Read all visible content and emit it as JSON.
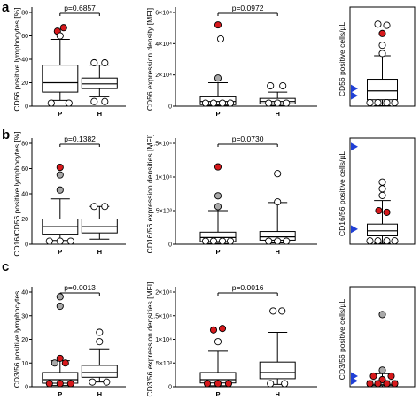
{
  "panel_letters": [
    "a",
    "b",
    "c"
  ],
  "colors": {
    "red": "#d7191c",
    "gray": "#a9a9a9",
    "white": "#ffffff",
    "blue_marker": "#1f3fd6",
    "stroke": "#000000"
  },
  "chart_data": [
    {
      "type": "box",
      "panel": "a",
      "ylabel": "CD56 positive lymphocytes [%]",
      "ylim": [
        0,
        80
      ],
      "yticks": [
        0,
        20,
        40,
        60,
        80
      ],
      "categories": [
        "P",
        "H"
      ],
      "pvalue": "p=0.6857",
      "boxes": [
        {
          "q1": 12,
          "median": 20,
          "q3": 35,
          "whisker_low": 5,
          "whisker_high": 57
        },
        {
          "q1": 15,
          "median": 19,
          "q3": 24,
          "whisker_low": 8,
          "whisker_high": 35
        }
      ],
      "points": [
        {
          "cat": 0,
          "value": 64,
          "color": "red",
          "jitter": -3
        },
        {
          "cat": 0,
          "value": 67,
          "color": "red",
          "jitter": 4
        },
        {
          "cat": 0,
          "value": 60,
          "color": "white",
          "jitter": 0
        },
        {
          "cat": 0,
          "value": 2,
          "color": "white",
          "jitter": -10
        },
        {
          "cat": 0,
          "value": 2,
          "color": "white",
          "jitter": 10
        },
        {
          "cat": 1,
          "value": 37,
          "color": "white",
          "jitter": -6
        },
        {
          "cat": 1,
          "value": 37,
          "color": "white",
          "jitter": 6
        },
        {
          "cat": 1,
          "value": 4,
          "color": "white",
          "jitter": -6
        },
        {
          "cat": 1,
          "value": 4,
          "color": "white",
          "jitter": 6
        }
      ]
    },
    {
      "type": "box",
      "panel": "a",
      "ylabel": "CD56 expression density [MFI]",
      "ylim": [
        0,
        60000
      ],
      "yticks": [
        0,
        20000,
        40000,
        60000
      ],
      "ytick_labels": [
        "0",
        "2×10⁴",
        "4×10⁴",
        "6×10⁴"
      ],
      "categories": [
        "P",
        "H"
      ],
      "pvalue": "p=0.0972",
      "boxes": [
        {
          "q1": 1000,
          "median": 3000,
          "q3": 6000,
          "whisker_low": 300,
          "whisker_high": 15000
        },
        {
          "q1": 1500,
          "median": 3000,
          "q3": 5000,
          "whisker_low": 500,
          "whisker_high": 9000
        }
      ],
      "points": [
        {
          "cat": 0,
          "value": 52000,
          "color": "red",
          "jitter": 0
        },
        {
          "cat": 0,
          "value": 43000,
          "color": "white",
          "jitter": 3
        },
        {
          "cat": 0,
          "value": 18000,
          "color": "gray",
          "jitter": 0
        },
        {
          "cat": 0,
          "value": 500,
          "color": "white",
          "jitter": -14
        },
        {
          "cat": 0,
          "value": 500,
          "color": "white",
          "jitter": -5
        },
        {
          "cat": 0,
          "value": 500,
          "color": "white",
          "jitter": 5
        },
        {
          "cat": 0,
          "value": 500,
          "color": "white",
          "jitter": 14
        },
        {
          "cat": 1,
          "value": 13000,
          "color": "white",
          "jitter": -8
        },
        {
          "cat": 1,
          "value": 13000,
          "color": "white",
          "jitter": 6
        },
        {
          "cat": 1,
          "value": 500,
          "color": "white",
          "jitter": -10
        },
        {
          "cat": 1,
          "value": 500,
          "color": "white",
          "jitter": 0
        },
        {
          "cat": 1,
          "value": 500,
          "color": "white",
          "jitter": 10
        }
      ]
    },
    {
      "type": "box",
      "panel": "a",
      "ylabel": "CD56 positive cells/µL",
      "ylim": [
        0,
        800
      ],
      "yticks": [],
      "categories": [],
      "pvalue": "",
      "boxes": [
        {
          "q1": 55,
          "median": 130,
          "q3": 230,
          "whisker_low": 5,
          "whisker_high": 430
        }
      ],
      "points": [
        {
          "cat": 0,
          "value": 700,
          "color": "white",
          "jitter": -5
        },
        {
          "cat": 0,
          "value": 690,
          "color": "white",
          "jitter": 5
        },
        {
          "cat": 0,
          "value": 620,
          "color": "red",
          "jitter": 0
        },
        {
          "cat": 0,
          "value": 520,
          "color": "white",
          "jitter": 0
        },
        {
          "cat": 0,
          "value": 450,
          "color": "white",
          "jitter": 0
        },
        {
          "cat": 0,
          "value": 30,
          "color": "white",
          "jitter": -14
        },
        {
          "cat": 0,
          "value": 30,
          "color": "white",
          "jitter": -5
        },
        {
          "cat": 0,
          "value": 30,
          "color": "white",
          "jitter": 5
        },
        {
          "cat": 0,
          "value": 30,
          "color": "white",
          "jitter": 14
        }
      ],
      "markers": [
        90,
        150
      ]
    },
    {
      "type": "box",
      "panel": "b",
      "ylabel": "CD16/CD56 positive lymphocytes [%]",
      "ylim": [
        0,
        80
      ],
      "yticks": [
        0,
        20,
        40,
        60,
        80
      ],
      "categories": [
        "P",
        "H"
      ],
      "pvalue": "p=0.1382",
      "boxes": [
        {
          "q1": 8,
          "median": 14,
          "q3": 20,
          "whisker_low": 3,
          "whisker_high": 36
        },
        {
          "q1": 9,
          "median": 14,
          "q3": 20,
          "whisker_low": 4,
          "whisker_high": 30
        }
      ],
      "points": [
        {
          "cat": 0,
          "value": 61,
          "color": "red",
          "jitter": 0
        },
        {
          "cat": 0,
          "value": 55,
          "color": "gray",
          "jitter": 0
        },
        {
          "cat": 0,
          "value": 43,
          "color": "gray",
          "jitter": 0
        },
        {
          "cat": 0,
          "value": 2,
          "color": "white",
          "jitter": -12
        },
        {
          "cat": 0,
          "value": 2,
          "color": "white",
          "jitter": 0
        },
        {
          "cat": 0,
          "value": 2,
          "color": "white",
          "jitter": 12
        },
        {
          "cat": 1,
          "value": 30,
          "color": "white",
          "jitter": -6
        },
        {
          "cat": 1,
          "value": 30,
          "color": "white",
          "jitter": 6
        }
      ]
    },
    {
      "type": "box",
      "panel": "b",
      "ylabel": "CD16/56 expression densities [MFI]",
      "ylim": [
        0,
        15000
      ],
      "yticks": [
        0,
        5000,
        10000,
        15000
      ],
      "ytick_labels": [
        "0",
        "5×10³",
        "1×10⁴",
        "1.5×10⁴"
      ],
      "categories": [
        "P",
        "H"
      ],
      "pvalue": "p=0.0730",
      "boxes": [
        {
          "q1": 400,
          "median": 1000,
          "q3": 1800,
          "whisker_low": 100,
          "whisker_high": 5000
        },
        {
          "q1": 600,
          "median": 1100,
          "q3": 1900,
          "whisker_low": 200,
          "whisker_high": 6200
        }
      ],
      "points": [
        {
          "cat": 0,
          "value": 11500,
          "color": "red",
          "jitter": 0
        },
        {
          "cat": 0,
          "value": 7200,
          "color": "gray",
          "jitter": 0
        },
        {
          "cat": 0,
          "value": 5600,
          "color": "gray",
          "jitter": 0
        },
        {
          "cat": 0,
          "value": 200,
          "color": "white",
          "jitter": -14
        },
        {
          "cat": 0,
          "value": 200,
          "color": "white",
          "jitter": -5
        },
        {
          "cat": 0,
          "value": 200,
          "color": "white",
          "jitter": 5
        },
        {
          "cat": 0,
          "value": 200,
          "color": "white",
          "jitter": 14
        },
        {
          "cat": 1,
          "value": 10500,
          "color": "white",
          "jitter": 0
        },
        {
          "cat": 1,
          "value": 6300,
          "color": "white",
          "jitter": 0
        },
        {
          "cat": 1,
          "value": 200,
          "color": "white",
          "jitter": -10
        },
        {
          "cat": 1,
          "value": 200,
          "color": "white",
          "jitter": 0
        },
        {
          "cat": 1,
          "value": 200,
          "color": "white",
          "jitter": 10
        }
      ]
    },
    {
      "type": "box",
      "panel": "b",
      "ylabel": "CD16/56 positive cells/µL",
      "ylim": [
        0,
        600
      ],
      "yticks": [],
      "categories": [],
      "pvalue": "",
      "boxes": [
        {
          "q1": 50,
          "median": 80,
          "q3": 120,
          "whisker_low": 5,
          "whisker_high": 260
        }
      ],
      "points": [
        {
          "cat": 0,
          "value": 370,
          "color": "white",
          "jitter": 0
        },
        {
          "cat": 0,
          "value": 330,
          "color": "white",
          "jitter": 0
        },
        {
          "cat": 0,
          "value": 290,
          "color": "white",
          "jitter": 0
        },
        {
          "cat": 0,
          "value": 200,
          "color": "red",
          "jitter": -4
        },
        {
          "cat": 0,
          "value": 190,
          "color": "red",
          "jitter": 5
        },
        {
          "cat": 0,
          "value": 20,
          "color": "white",
          "jitter": -14
        },
        {
          "cat": 0,
          "value": 20,
          "color": "white",
          "jitter": -5
        },
        {
          "cat": 0,
          "value": 20,
          "color": "white",
          "jitter": 5
        },
        {
          "cat": 0,
          "value": 20,
          "color": "white",
          "jitter": 14
        }
      ],
      "markers": [
        90,
        580
      ]
    },
    {
      "type": "box",
      "panel": "c",
      "ylabel": "CD3/56 positive lymphocytes",
      "ylim": [
        0,
        40
      ],
      "yticks": [
        0,
        10,
        20,
        30,
        40
      ],
      "categories": [
        "P",
        "H"
      ],
      "pvalue": "p=0.0013",
      "boxes": [
        {
          "q1": 1.5,
          "median": 3,
          "q3": 6,
          "whisker_low": 0.5,
          "whisker_high": 11
        },
        {
          "q1": 4,
          "median": 6,
          "q3": 9,
          "whisker_low": 2,
          "whisker_high": 16
        }
      ],
      "points": [
        {
          "cat": 0,
          "value": 38,
          "color": "gray",
          "jitter": 0
        },
        {
          "cat": 0,
          "value": 34,
          "color": "gray",
          "jitter": 0
        },
        {
          "cat": 0,
          "value": 12,
          "color": "red",
          "jitter": 0
        },
        {
          "cat": 0,
          "value": 10,
          "color": "gray",
          "jitter": -6
        },
        {
          "cat": 0,
          "value": 10,
          "color": "red",
          "jitter": 6
        },
        {
          "cat": 0,
          "value": 1,
          "color": "red",
          "jitter": -12
        },
        {
          "cat": 0,
          "value": 1,
          "color": "red",
          "jitter": 0
        },
        {
          "cat": 0,
          "value": 1,
          "color": "red",
          "jitter": 12
        },
        {
          "cat": 1,
          "value": 23,
          "color": "white",
          "jitter": 0
        },
        {
          "cat": 1,
          "value": 19,
          "color": "white",
          "jitter": 0
        },
        {
          "cat": 1,
          "value": 2,
          "color": "white",
          "jitter": -8
        },
        {
          "cat": 1,
          "value": 2,
          "color": "white",
          "jitter": 8
        }
      ]
    },
    {
      "type": "box",
      "panel": "c",
      "ylabel": "CD3/56 expression densities [MFI]",
      "ylim": [
        0,
        20000
      ],
      "yticks": [
        0,
        5000,
        10000,
        15000,
        20000
      ],
      "ytick_labels": [
        "0",
        "5×10³",
        "1×10⁴",
        "1.5×10⁴",
        "2×10⁴"
      ],
      "categories": [
        "P",
        "H"
      ],
      "pvalue": "p=0.0016",
      "boxes": [
        {
          "q1": 800,
          "median": 1500,
          "q3": 3000,
          "whisker_low": 200,
          "whisker_high": 7500
        },
        {
          "q1": 1700,
          "median": 3000,
          "q3": 5200,
          "whisker_low": 500,
          "whisker_high": 11500
        }
      ],
      "points": [
        {
          "cat": 0,
          "value": 12000,
          "color": "red",
          "jitter": -5
        },
        {
          "cat": 0,
          "value": 12300,
          "color": "red",
          "jitter": 5
        },
        {
          "cat": 0,
          "value": 9500,
          "color": "white",
          "jitter": 0
        },
        {
          "cat": 0,
          "value": 300,
          "color": "red",
          "jitter": -12
        },
        {
          "cat": 0,
          "value": 300,
          "color": "red",
          "jitter": 0
        },
        {
          "cat": 0,
          "value": 300,
          "color": "red",
          "jitter": 12
        },
        {
          "cat": 1,
          "value": 16000,
          "color": "white",
          "jitter": -5
        },
        {
          "cat": 1,
          "value": 16000,
          "color": "white",
          "jitter": 5
        },
        {
          "cat": 1,
          "value": 500,
          "color": "white",
          "jitter": -8
        },
        {
          "cat": 1,
          "value": 500,
          "color": "white",
          "jitter": 8
        }
      ]
    },
    {
      "type": "box",
      "panel": "c",
      "ylabel": "CD3/56 positive cells/µL",
      "ylim": [
        0,
        800
      ],
      "yticks": [],
      "categories": [],
      "pvalue": "",
      "boxes": [
        {
          "q1": 10,
          "median": 20,
          "q3": 50,
          "whisker_low": 0,
          "whisker_high": 110
        }
      ],
      "points": [
        {
          "cat": 0,
          "value": 610,
          "color": "gray",
          "jitter": 0
        },
        {
          "cat": 0,
          "value": 140,
          "color": "gray",
          "jitter": 0
        },
        {
          "cat": 0,
          "value": 90,
          "color": "red",
          "jitter": -10
        },
        {
          "cat": 0,
          "value": 90,
          "color": "red",
          "jitter": 10
        },
        {
          "cat": 0,
          "value": 60,
          "color": "red",
          "jitter": 0
        },
        {
          "cat": 0,
          "value": 10,
          "color": "red",
          "jitter": -14
        },
        {
          "cat": 0,
          "value": 10,
          "color": "red",
          "jitter": -5
        },
        {
          "cat": 0,
          "value": 10,
          "color": "red",
          "jitter": 5
        },
        {
          "cat": 0,
          "value": 10,
          "color": "red",
          "jitter": 14
        }
      ],
      "markers": [
        50,
        90
      ]
    }
  ]
}
